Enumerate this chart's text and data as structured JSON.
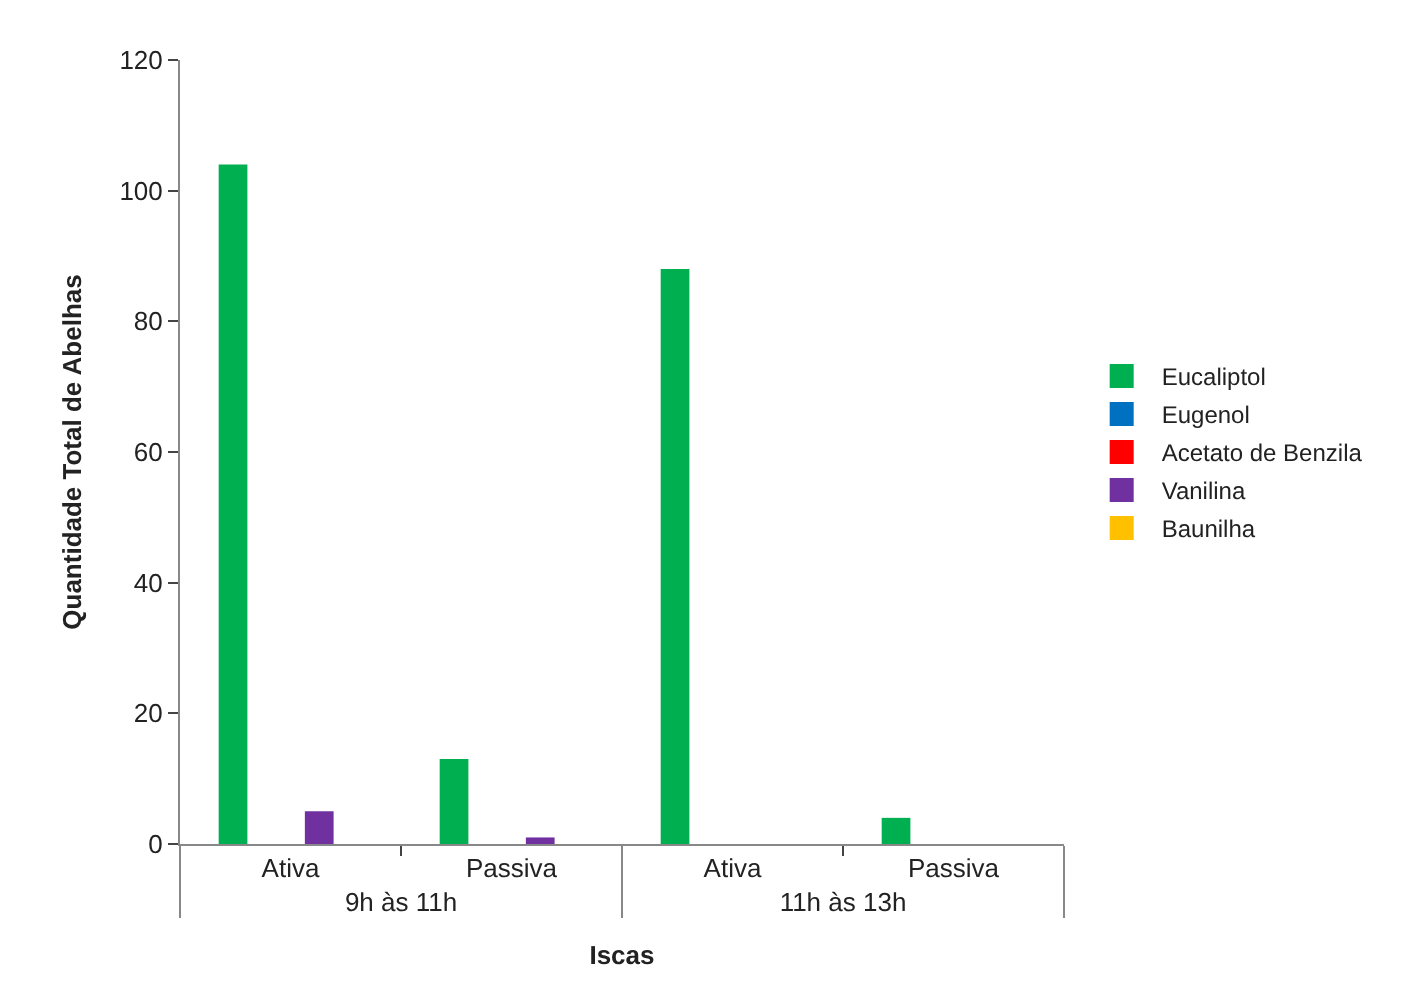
{
  "chart_data": {
    "type": "bar",
    "xlabel": "Iscas",
    "ylabel": "Quantidade Total de Abelhas",
    "categories": [
      "Ativa",
      "Passiva",
      "Ativa",
      "Passiva"
    ],
    "annotations": [
      "9h às 11h",
      "11h às 13h"
    ],
    "series": [
      {
        "name": "Eucaliptol",
        "color": "#00b050",
        "values": [
          104,
          13,
          88,
          4
        ]
      },
      {
        "name": "Eugenol",
        "color": "#0070c0",
        "values": [
          0,
          0,
          0,
          0
        ]
      },
      {
        "name": "Acetato de Benzila",
        "color": "#ff0000",
        "values": [
          0,
          0,
          0,
          0
        ]
      },
      {
        "name": "Vanilina",
        "color": "#7030a0",
        "values": [
          5,
          1,
          0,
          0
        ]
      },
      {
        "name": "Baunilha",
        "color": "#ffc000",
        "values": [
          0,
          0,
          0,
          0
        ]
      }
    ],
    "ylim": [
      0,
      120
    ],
    "yticks": [
      0,
      20,
      40,
      60,
      80,
      100,
      120
    ],
    "legend": "right"
  }
}
